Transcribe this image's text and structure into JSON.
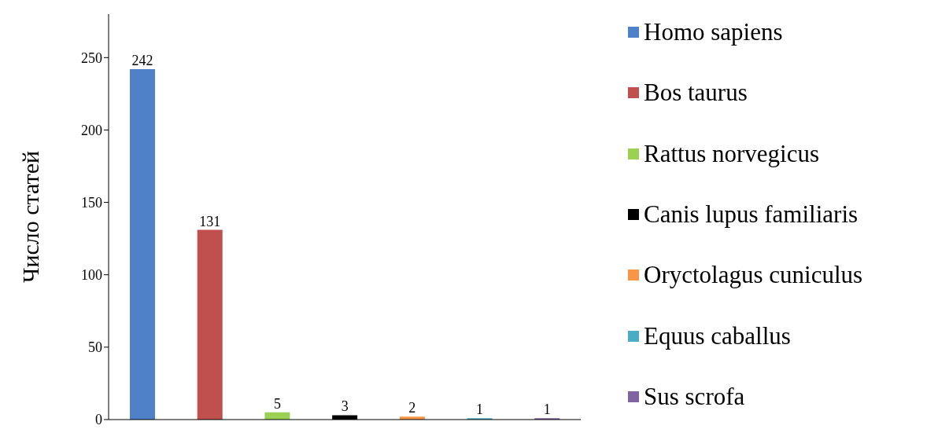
{
  "chart_data": {
    "type": "bar",
    "ylabel": "Число статей",
    "categories": [
      null,
      null,
      null,
      null,
      null,
      null,
      null
    ],
    "series": [
      {
        "name": "Homo sapiens",
        "color": "#4f81c9",
        "values": [
          242,
          null,
          null,
          null,
          null,
          null,
          null
        ]
      },
      {
        "name": "Bos taurus",
        "color": "#c0504d",
        "values": [
          null,
          131,
          null,
          null,
          null,
          null,
          null
        ]
      },
      {
        "name": "Rattus norvegicus",
        "color": "#9bd152",
        "values": [
          null,
          null,
          5,
          null,
          null,
          null,
          null
        ]
      },
      {
        "name": "Canis lupus familiaris",
        "color": "#000000",
        "values": [
          null,
          null,
          null,
          3,
          null,
          null,
          null
        ]
      },
      {
        "name": "Oryctolagus cuniculus",
        "color": "#f79646",
        "values": [
          null,
          null,
          null,
          null,
          2,
          null,
          null
        ]
      },
      {
        "name": "Equus caballus",
        "color": "#4bacc6",
        "values": [
          null,
          null,
          null,
          null,
          null,
          1,
          null
        ]
      },
      {
        "name": "Sus scrofa",
        "color": "#8064a2",
        "values": [
          null,
          null,
          null,
          null,
          null,
          null,
          1
        ]
      }
    ],
    "ylim": [
      0,
      280
    ],
    "yticks": [
      0,
      50,
      100,
      150,
      200,
      250
    ],
    "data_labels": true,
    "legend": "right",
    "tick_labels": "y",
    "grid": false
  }
}
